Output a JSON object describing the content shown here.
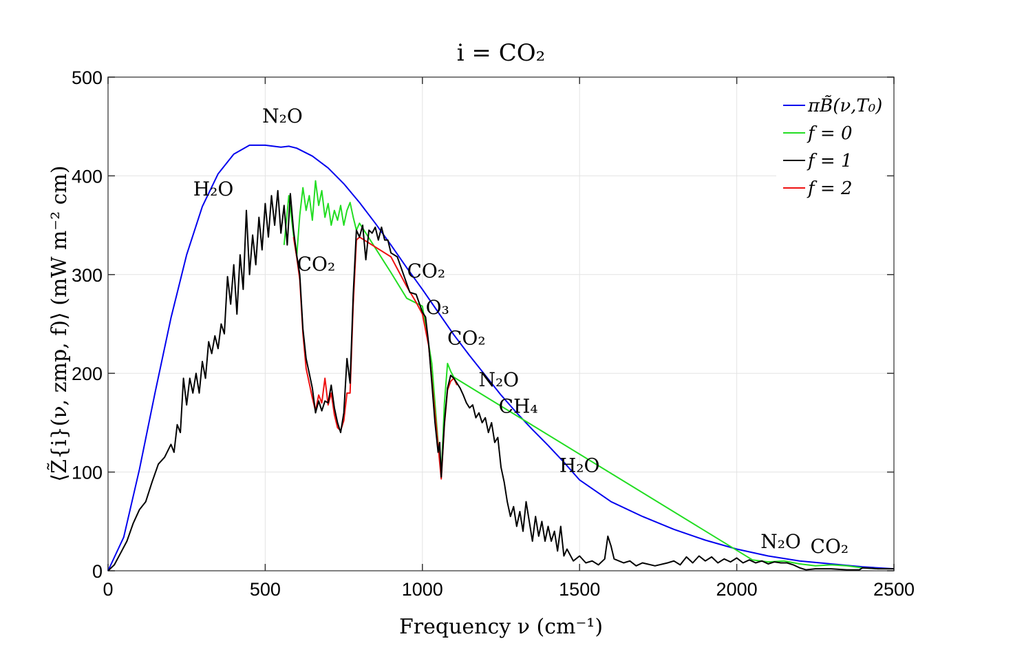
{
  "chart_data": {
    "type": "line",
    "title": "i =  CO₂",
    "xlabel": "Frequency ν (cm⁻¹)",
    "ylabel": "⟨Z̃{i}(ν, zmp, f)⟩ (mW m⁻² cm)",
    "xlim": [
      0,
      2500
    ],
    "ylim": [
      0,
      500
    ],
    "xticks": [
      0,
      500,
      1000,
      1500,
      2000,
      2500
    ],
    "yticks": [
      0,
      100,
      200,
      300,
      400,
      500
    ],
    "grid": true,
    "legend_position": "top-right",
    "series": [
      {
        "name": "πB̃(ν,T₀)",
        "color": "#0000ee",
        "points": [
          [
            0,
            0
          ],
          [
            50,
            34
          ],
          [
            100,
            103
          ],
          [
            150,
            181
          ],
          [
            200,
            256
          ],
          [
            250,
            320
          ],
          [
            300,
            369
          ],
          [
            350,
            402
          ],
          [
            400,
            422
          ],
          [
            450,
            431
          ],
          [
            500,
            431
          ],
          [
            550,
            429
          ],
          [
            575,
            430
          ],
          [
            600,
            428
          ],
          [
            650,
            420
          ],
          [
            700,
            408
          ],
          [
            750,
            392
          ],
          [
            800,
            373
          ],
          [
            850,
            352
          ],
          [
            900,
            330
          ],
          [
            950,
            307
          ],
          [
            1000,
            285
          ],
          [
            1050,
            262
          ],
          [
            1100,
            239
          ],
          [
            1150,
            218
          ],
          [
            1200,
            198
          ],
          [
            1250,
            178
          ],
          [
            1300,
            160
          ],
          [
            1350,
            143
          ],
          [
            1400,
            127
          ],
          [
            1450,
            110
          ],
          [
            1500,
            92
          ],
          [
            1600,
            70
          ],
          [
            1700,
            55
          ],
          [
            1800,
            42
          ],
          [
            1900,
            31
          ],
          [
            2000,
            22
          ],
          [
            2100,
            15
          ],
          [
            2200,
            10
          ],
          [
            2300,
            7
          ],
          [
            2400,
            4
          ],
          [
            2500,
            2
          ]
        ]
      },
      {
        "name": "f = 0",
        "color": "#22dd22",
        "points": [
          [
            560,
            330
          ],
          [
            575,
            380
          ],
          [
            590,
            340
          ],
          [
            600,
            318
          ],
          [
            610,
            360
          ],
          [
            620,
            388
          ],
          [
            630,
            365
          ],
          [
            640,
            380
          ],
          [
            650,
            355
          ],
          [
            660,
            395
          ],
          [
            670,
            370
          ],
          [
            680,
            385
          ],
          [
            690,
            358
          ],
          [
            700,
            372
          ],
          [
            710,
            350
          ],
          [
            720,
            365
          ],
          [
            730,
            355
          ],
          [
            740,
            370
          ],
          [
            750,
            350
          ],
          [
            760,
            365
          ],
          [
            770,
            373
          ],
          [
            780,
            358
          ],
          [
            790,
            345
          ],
          [
            800,
            352
          ],
          [
            820,
            342
          ],
          [
            900,
            302
          ],
          [
            950,
            276
          ],
          [
            1000,
            268
          ],
          [
            1030,
            210
          ],
          [
            1050,
            130
          ],
          [
            1060,
            96
          ],
          [
            1070,
            170
          ],
          [
            1080,
            210
          ],
          [
            1090,
            202
          ],
          [
            1100,
            196
          ],
          [
            2050,
            11
          ],
          [
            2100,
            9
          ],
          [
            2150,
            10
          ],
          [
            2200,
            7
          ],
          [
            2250,
            5
          ],
          [
            2300,
            6
          ],
          [
            2350,
            5
          ],
          [
            2400,
            3
          ],
          [
            2450,
            2
          ]
        ]
      },
      {
        "name": "f = 1",
        "color": "#000000",
        "points": [
          [
            0,
            0
          ],
          [
            20,
            6
          ],
          [
            40,
            18
          ],
          [
            60,
            30
          ],
          [
            80,
            48
          ],
          [
            100,
            62
          ],
          [
            120,
            70
          ],
          [
            140,
            90
          ],
          [
            160,
            108
          ],
          [
            180,
            115
          ],
          [
            200,
            128
          ],
          [
            210,
            120
          ],
          [
            220,
            148
          ],
          [
            230,
            140
          ],
          [
            240,
            195
          ],
          [
            250,
            168
          ],
          [
            260,
            195
          ],
          [
            270,
            180
          ],
          [
            280,
            200
          ],
          [
            290,
            180
          ],
          [
            300,
            212
          ],
          [
            310,
            195
          ],
          [
            320,
            232
          ],
          [
            330,
            220
          ],
          [
            340,
            238
          ],
          [
            350,
            225
          ],
          [
            360,
            250
          ],
          [
            370,
            240
          ],
          [
            380,
            298
          ],
          [
            390,
            270
          ],
          [
            400,
            310
          ],
          [
            410,
            260
          ],
          [
            420,
            320
          ],
          [
            430,
            285
          ],
          [
            440,
            365
          ],
          [
            450,
            300
          ],
          [
            460,
            340
          ],
          [
            470,
            310
          ],
          [
            480,
            358
          ],
          [
            490,
            325
          ],
          [
            500,
            372
          ],
          [
            510,
            338
          ],
          [
            520,
            380
          ],
          [
            530,
            350
          ],
          [
            540,
            385
          ],
          [
            550,
            342
          ],
          [
            560,
            370
          ],
          [
            570,
            330
          ],
          [
            580,
            382
          ],
          [
            590,
            345
          ],
          [
            600,
            320
          ],
          [
            610,
            300
          ],
          [
            620,
            245
          ],
          [
            630,
            215
          ],
          [
            640,
            200
          ],
          [
            650,
            185
          ],
          [
            660,
            160
          ],
          [
            670,
            172
          ],
          [
            680,
            162
          ],
          [
            690,
            172
          ],
          [
            700,
            170
          ],
          [
            710,
            188
          ],
          [
            720,
            165
          ],
          [
            730,
            150
          ],
          [
            740,
            140
          ],
          [
            750,
            160
          ],
          [
            760,
            215
          ],
          [
            770,
            190
          ],
          [
            780,
            280
          ],
          [
            790,
            345
          ],
          [
            800,
            338
          ],
          [
            810,
            350
          ],
          [
            820,
            315
          ],
          [
            830,
            345
          ],
          [
            840,
            342
          ],
          [
            850,
            348
          ],
          [
            860,
            335
          ],
          [
            870,
            348
          ],
          [
            880,
            335
          ],
          [
            890,
            335
          ],
          [
            900,
            322
          ],
          [
            920,
            318
          ],
          [
            940,
            300
          ],
          [
            960,
            282
          ],
          [
            980,
            280
          ],
          [
            1000,
            262
          ],
          [
            1010,
            257
          ],
          [
            1020,
            230
          ],
          [
            1030,
            190
          ],
          [
            1040,
            150
          ],
          [
            1050,
            120
          ],
          [
            1055,
            130
          ],
          [
            1060,
            95
          ],
          [
            1070,
            150
          ],
          [
            1080,
            185
          ],
          [
            1090,
            198
          ],
          [
            1100,
            195
          ],
          [
            1110,
            190
          ],
          [
            1120,
            185
          ],
          [
            1130,
            178
          ],
          [
            1140,
            170
          ],
          [
            1150,
            165
          ],
          [
            1160,
            168
          ],
          [
            1170,
            155
          ],
          [
            1180,
            160
          ],
          [
            1190,
            150
          ],
          [
            1200,
            155
          ],
          [
            1210,
            140
          ],
          [
            1220,
            150
          ],
          [
            1230,
            130
          ],
          [
            1240,
            135
          ],
          [
            1250,
            105
          ],
          [
            1260,
            90
          ],
          [
            1270,
            70
          ],
          [
            1280,
            55
          ],
          [
            1290,
            65
          ],
          [
            1300,
            45
          ],
          [
            1310,
            60
          ],
          [
            1320,
            40
          ],
          [
            1330,
            70
          ],
          [
            1340,
            50
          ],
          [
            1350,
            30
          ],
          [
            1360,
            55
          ],
          [
            1370,
            35
          ],
          [
            1380,
            50
          ],
          [
            1390,
            30
          ],
          [
            1400,
            45
          ],
          [
            1410,
            30
          ],
          [
            1420,
            40
          ],
          [
            1430,
            20
          ],
          [
            1440,
            45
          ],
          [
            1450,
            15
          ],
          [
            1460,
            22
          ],
          [
            1480,
            10
          ],
          [
            1500,
            15
          ],
          [
            1520,
            8
          ],
          [
            1540,
            10
          ],
          [
            1560,
            6
          ],
          [
            1580,
            12
          ],
          [
            1590,
            35
          ],
          [
            1600,
            25
          ],
          [
            1610,
            12
          ],
          [
            1640,
            8
          ],
          [
            1660,
            10
          ],
          [
            1680,
            5
          ],
          [
            1700,
            8
          ],
          [
            1740,
            5
          ],
          [
            1780,
            8
          ],
          [
            1800,
            10
          ],
          [
            1820,
            6
          ],
          [
            1840,
            14
          ],
          [
            1860,
            8
          ],
          [
            1880,
            15
          ],
          [
            1900,
            10
          ],
          [
            1920,
            14
          ],
          [
            1940,
            8
          ],
          [
            1960,
            12
          ],
          [
            1980,
            9
          ],
          [
            2000,
            13
          ],
          [
            2020,
            8
          ],
          [
            2040,
            11
          ],
          [
            2060,
            8
          ],
          [
            2080,
            10
          ],
          [
            2100,
            7
          ],
          [
            2120,
            9
          ],
          [
            2140,
            8
          ],
          [
            2160,
            8
          ],
          [
            2180,
            6
          ],
          [
            2200,
            3
          ],
          [
            2220,
            1
          ],
          [
            2250,
            2
          ],
          [
            2300,
            2
          ],
          [
            2350,
            1
          ],
          [
            2390,
            1
          ],
          [
            2400,
            3
          ],
          [
            2450,
            2
          ],
          [
            2500,
            2
          ]
        ]
      },
      {
        "name": "f = 2",
        "color": "#ee1111",
        "points": [
          [
            590,
            338
          ],
          [
            600,
            318
          ],
          [
            610,
            295
          ],
          [
            620,
            240
          ],
          [
            630,
            205
          ],
          [
            640,
            190
          ],
          [
            650,
            175
          ],
          [
            660,
            162
          ],
          [
            670,
            178
          ],
          [
            680,
            170
          ],
          [
            690,
            195
          ],
          [
            700,
            168
          ],
          [
            710,
            180
          ],
          [
            720,
            158
          ],
          [
            730,
            145
          ],
          [
            740,
            142
          ],
          [
            750,
            152
          ],
          [
            760,
            180
          ],
          [
            770,
            180
          ],
          [
            780,
            270
          ],
          [
            790,
            335
          ],
          [
            800,
            338
          ],
          [
            900,
            318
          ],
          [
            950,
            288
          ],
          [
            980,
            272
          ],
          [
            1000,
            260
          ],
          [
            1020,
            228
          ],
          [
            1040,
            160
          ],
          [
            1060,
            93
          ],
          [
            1070,
            148
          ],
          [
            1080,
            183
          ],
          [
            1090,
            192
          ],
          [
            1100,
            195
          ],
          [
            1110,
            188
          ]
        ]
      }
    ],
    "annotations": [
      {
        "text": "N₂O",
        "x": 555,
        "y": 454
      },
      {
        "text": "H₂O",
        "x": 335,
        "y": 380
      },
      {
        "text": "CO₂",
        "x": 662,
        "y": 304
      },
      {
        "text": "CO₂",
        "x": 1012,
        "y": 297
      },
      {
        "text": "O₃",
        "x": 1048,
        "y": 260
      },
      {
        "text": "CO₂",
        "x": 1140,
        "y": 229
      },
      {
        "text": "N₂O",
        "x": 1243,
        "y": 187
      },
      {
        "text": "CH₄",
        "x": 1305,
        "y": 160
      },
      {
        "text": "H₂O",
        "x": 1500,
        "y": 100
      },
      {
        "text": "N₂O",
        "x": 2140,
        "y": 23
      },
      {
        "text": "CO₂",
        "x": 2295,
        "y": 18
      }
    ]
  }
}
